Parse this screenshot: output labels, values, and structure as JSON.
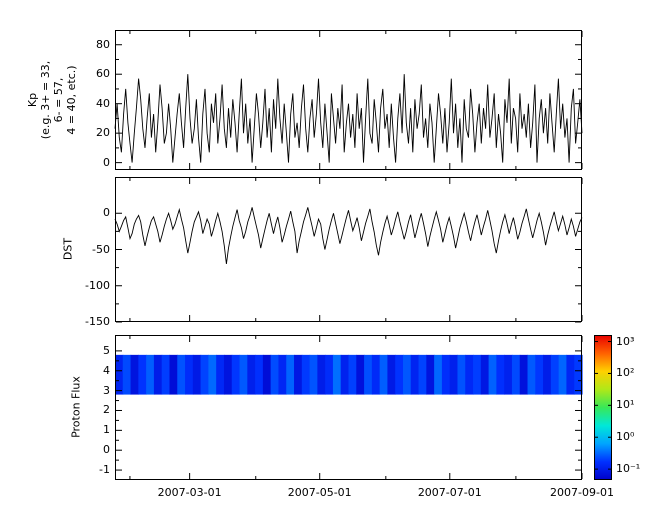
{
  "figure": {
    "background": "#ffffff",
    "axis_color": "#000000"
  },
  "chart_data": [
    {
      "type": "line",
      "name": "kp-index",
      "ylabel_lines": [
        "Kp",
        "(e.g. 3+ = 33,",
        "6- = 57,",
        "4 = 40, etc.)"
      ],
      "ylim": [
        -5,
        90
      ],
      "yticks": [
        0,
        20,
        40,
        60,
        80
      ],
      "line_color": "#000000",
      "values": [
        23,
        40,
        17,
        7,
        33,
        50,
        27,
        13,
        0,
        20,
        37,
        57,
        43,
        23,
        10,
        30,
        47,
        17,
        33,
        7,
        27,
        53,
        37,
        13,
        20,
        40,
        23,
        0,
        17,
        33,
        47,
        27,
        10,
        37,
        60,
        30,
        13,
        23,
        43,
        17,
        0,
        33,
        50,
        20,
        7,
        40,
        27,
        47,
        13,
        30,
        53,
        23,
        10,
        37,
        17,
        43,
        27,
        7,
        33,
        57,
        20,
        40,
        13,
        30,
        0,
        23,
        47,
        33,
        10,
        27,
        50,
        17,
        37,
        7,
        43,
        23,
        57,
        30,
        13,
        40,
        20,
        0,
        33,
        47,
        17,
        27,
        10,
        37,
        53,
        23,
        7,
        30,
        43,
        17,
        33,
        57,
        27,
        10,
        40,
        20,
        0,
        47,
        30,
        13,
        37,
        23,
        53,
        7,
        27,
        40,
        17,
        33,
        10,
        47,
        23,
        37,
        0,
        30,
        57,
        20,
        13,
        43,
        27,
        7,
        37,
        50,
        23,
        33,
        10,
        40,
        17,
        0,
        30,
        47,
        20,
        60,
        27,
        13,
        37,
        7,
        43,
        23,
        33,
        53,
        17,
        30,
        10,
        40,
        27,
        0,
        23,
        47,
        33,
        13,
        37,
        7,
        27,
        57,
        20,
        40,
        10,
        30,
        0,
        43,
        23,
        17,
        50,
        33,
        7,
        27,
        40,
        13,
        37,
        23,
        53,
        17,
        30,
        47,
        10,
        33,
        20,
        0,
        43,
        27,
        57,
        13,
        37,
        30,
        7,
        47,
        23,
        33,
        17,
        40,
        10,
        27,
        53,
        0,
        30,
        43,
        20,
        37,
        13,
        47,
        27,
        7,
        33,
        57,
        23,
        40,
        17,
        30,
        0,
        37,
        50,
        13,
        27,
        43,
        20
      ]
    },
    {
      "type": "line",
      "name": "dst-index",
      "ylabel": "DST",
      "ylim": [
        -150,
        50
      ],
      "yticks": [
        0,
        -50,
        -100,
        -150
      ],
      "line_color": "#000000",
      "values": [
        -8,
        -15,
        -25,
        -18,
        -10,
        -5,
        -20,
        -35,
        -28,
        -15,
        -8,
        -3,
        -12,
        -30,
        -45,
        -32,
        -20,
        -10,
        -5,
        -15,
        -25,
        -40,
        -30,
        -18,
        -8,
        0,
        -10,
        -22,
        -15,
        -5,
        5,
        -8,
        -20,
        -38,
        -55,
        -40,
        -25,
        -12,
        -5,
        2,
        -10,
        -28,
        -18,
        -8,
        -15,
        -32,
        -22,
        -10,
        0,
        -12,
        -25,
        -45,
        -70,
        -48,
        -32,
        -18,
        -6,
        5,
        -10,
        -20,
        -35,
        -25,
        -12,
        -3,
        8,
        -5,
        -18,
        -30,
        -48,
        -35,
        -22,
        -10,
        0,
        -15,
        -28,
        -15,
        -5,
        -20,
        -40,
        -30,
        -18,
        -8,
        3,
        -12,
        -25,
        -55,
        -38,
        -25,
        -12,
        -2,
        8,
        -5,
        -18,
        -32,
        -20,
        -8,
        -15,
        -35,
        -50,
        -36,
        -22,
        -10,
        0,
        -14,
        -28,
        -42,
        -30,
        -18,
        -6,
        4,
        -10,
        -24,
        -16,
        -6,
        -20,
        -38,
        -26,
        -14,
        -4,
        6,
        -12,
        -26,
        -44,
        -58,
        -40,
        -26,
        -14,
        -4,
        -16,
        -30,
        -20,
        -8,
        2,
        -12,
        -24,
        -36,
        -25,
        -12,
        -2,
        -18,
        -34,
        -22,
        -10,
        0,
        -14,
        -28,
        -46,
        -32,
        -20,
        -8,
        2,
        -10,
        -22,
        -40,
        -28,
        -16,
        -6,
        -18,
        -32,
        -48,
        -34,
        -20,
        -10,
        0,
        -12,
        -26,
        -38,
        -24,
        -12,
        -2,
        -16,
        -30,
        -18,
        -8,
        4,
        -10,
        -24,
        -42,
        -55,
        -38,
        -24,
        -12,
        -2,
        -14,
        -28,
        -16,
        -6,
        -20,
        -36,
        -26,
        -14,
        -4,
        6,
        -8,
        -22,
        -34,
        -22,
        -10,
        0,
        -12,
        -26,
        -44,
        -30,
        -18,
        -8,
        2,
        -12,
        -24,
        -14,
        -4,
        -16,
        -30,
        -20,
        -8,
        -18,
        -32,
        -22,
        -12,
        -6
      ]
    },
    {
      "type": "heatmap",
      "name": "proton-flux",
      "ylabel": "Proton Flux",
      "ylim": [
        -1.5,
        5.8
      ],
      "yticks": [
        -1,
        0,
        1,
        2,
        3,
        4,
        5
      ],
      "band_y": [
        2.8,
        4.8
      ],
      "values": [
        0.18,
        0.32,
        0.12,
        0.25,
        0.4,
        0.15,
        0.28,
        0.1,
        0.35,
        0.22,
        0.14,
        0.3,
        0.45,
        0.2,
        0.12,
        0.26,
        0.38,
        0.16,
        0.24,
        0.1,
        0.33,
        0.19,
        0.42,
        0.13,
        0.27,
        0.36,
        0.15,
        0.22,
        0.48,
        0.17,
        0.29,
        0.11,
        0.34,
        0.21,
        0.4,
        0.14,
        0.25,
        0.37,
        0.18,
        0.3,
        0.12,
        0.44,
        0.23,
        0.16,
        0.35,
        0.2,
        0.28,
        0.13,
        0.41,
        0.24,
        0.17,
        0.32,
        0.11,
        0.38,
        0.26,
        0.15,
        0.29,
        0.43,
        0.19,
        0.27
      ],
      "colorbar": {
        "scale": "log",
        "tick_labels": [
          "10³",
          "10²",
          "10¹",
          "10⁰",
          "10⁻¹"
        ],
        "value_range": [
          0.1,
          1000
        ],
        "colors_bottom_to_top": [
          "#0000c8",
          "#0030ff",
          "#00a4ff",
          "#00e8d8",
          "#38e858",
          "#b0e818",
          "#ffd000",
          "#ff6000",
          "#e80000"
        ]
      }
    }
  ],
  "xaxis": {
    "tick_labels": [
      "2007-03-01",
      "2007-05-01",
      "2007-07-01",
      "2007-09-01"
    ],
    "tick_positions_days": [
      35,
      96,
      157,
      219
    ],
    "minor_tick_days": [
      7,
      66,
      127,
      188
    ],
    "range_days": [
      0,
      219
    ]
  }
}
